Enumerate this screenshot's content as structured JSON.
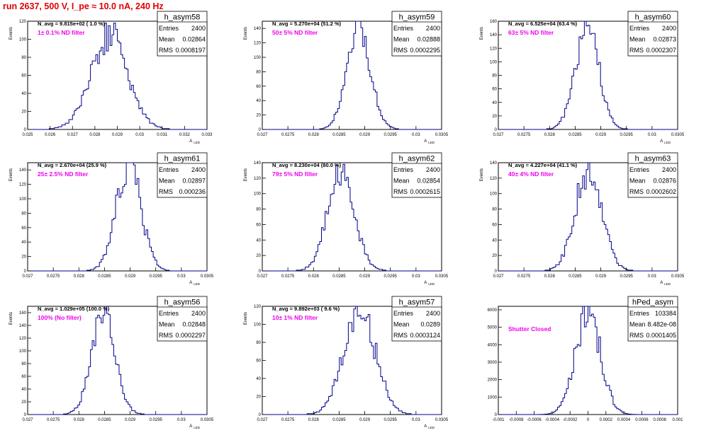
{
  "run_title": "run 2637,   500 V, I_pe ≈ 10.0 nA, 240 Hz",
  "colors": {
    "title": "#e00000",
    "histogram": "#00008b",
    "annotation": "#ee00ee",
    "axis": "#000000"
  },
  "chart_data": [
    {
      "type": "histogram",
      "name": "h_asym58",
      "entries": "2400",
      "mean": "0.02864",
      "rms": "0.0008197",
      "n_avg": "N_avg = 9.815e+02 ( 1.0 %)",
      "note": "1± 0.1% ND filter",
      "xlim": [
        0.025,
        0.033
      ],
      "ylim": [
        0,
        120
      ],
      "xticks": [
        0.025,
        0.026,
        0.027,
        0.028,
        0.029,
        0.03,
        0.031,
        0.032,
        0.033
      ],
      "xticklabels": [
        "0.025",
        "0.026",
        "0.027",
        "0.028",
        "0.029",
        "0.03",
        "0.031",
        "0.032",
        "0.033"
      ],
      "yticks": [
        0,
        20,
        40,
        60,
        80,
        100,
        120
      ],
      "xlabel": "A_LED",
      "ylabel": "Events",
      "peak": 0.02864,
      "width": 0.00082,
      "max": 105,
      "seed": 58
    },
    {
      "type": "histogram",
      "name": "h_asym59",
      "entries": "2400",
      "mean": "0.02888",
      "rms": "0.0002295",
      "n_avg": "N_avg = 5.270e+04 (51.2 %)",
      "note": "50± 5% ND filter",
      "xlim": [
        0.027,
        0.0305
      ],
      "ylim": [
        0,
        150
      ],
      "xticks": [
        0.027,
        0.0275,
        0.028,
        0.0285,
        0.029,
        0.0295,
        0.03,
        0.0305
      ],
      "xticklabels": [
        "0.027",
        "0.0275",
        "0.028",
        "0.0285",
        "0.029",
        "0.0295",
        "0.03",
        "0.0305"
      ],
      "yticks": [
        0,
        20,
        40,
        60,
        80,
        100,
        120,
        140
      ],
      "xlabel": "A_LED",
      "ylabel": "Events",
      "peak": 0.02888,
      "width": 0.00023,
      "max": 145,
      "seed": 59
    },
    {
      "type": "histogram",
      "name": "h_asym60",
      "entries": "2400",
      "mean": "0.02873",
      "rms": "0.0002307",
      "n_avg": "N_avg = 6.525e+04 (63.4 %)",
      "note": "63± 5% ND filter",
      "xlim": [
        0.027,
        0.0305
      ],
      "ylim": [
        0,
        160
      ],
      "xticks": [
        0.027,
        0.0275,
        0.028,
        0.0285,
        0.029,
        0.0295,
        0.03,
        0.0305
      ],
      "xticklabels": [
        "0.027",
        "0.0275",
        "0.028",
        "0.0285",
        "0.029",
        "0.0295",
        "0.03",
        "0.0305"
      ],
      "yticks": [
        0,
        20,
        40,
        60,
        80,
        100,
        120,
        140,
        160
      ],
      "xlabel": "A_LED",
      "ylabel": "Events",
      "peak": 0.02873,
      "width": 0.00023,
      "max": 150,
      "seed": 60
    },
    {
      "type": "histogram",
      "name": "h_asym61",
      "entries": "2400",
      "mean": "0.02897",
      "rms": "0.000236",
      "n_avg": "N_avg = 2.670e+04 (25.9 %)",
      "note": "25± 2.5% ND filter",
      "xlim": [
        0.027,
        0.0305
      ],
      "ylim": [
        0,
        150
      ],
      "xticks": [
        0.027,
        0.0275,
        0.028,
        0.0285,
        0.029,
        0.0295,
        0.03,
        0.0305
      ],
      "xticklabels": [
        "0.027",
        "0.0275",
        "0.028",
        "0.0285",
        "0.029",
        "0.0295",
        "0.03",
        "0.0305"
      ],
      "yticks": [
        0,
        20,
        40,
        60,
        80,
        100,
        120,
        140
      ],
      "xlabel": "A_LED",
      "ylabel": "Events",
      "peak": 0.02897,
      "width": 0.00024,
      "max": 150,
      "seed": 61
    },
    {
      "type": "histogram",
      "name": "h_asym62",
      "entries": "2400",
      "mean": "0.02854",
      "rms": "0.0002615",
      "n_avg": "N_avg = 8.230e+04 (80.0 %)",
      "note": "79± 5% ND filter",
      "xlim": [
        0.027,
        0.0305
      ],
      "ylim": [
        0,
        140
      ],
      "xticks": [
        0.027,
        0.0275,
        0.028,
        0.0285,
        0.029,
        0.0295,
        0.03,
        0.0305
      ],
      "xticklabels": [
        "0.027",
        "0.0275",
        "0.028",
        "0.0285",
        "0.029",
        "0.0295",
        "0.03",
        "0.0305"
      ],
      "yticks": [
        0,
        20,
        40,
        60,
        80,
        100,
        120,
        140
      ],
      "xlabel": "A_LED",
      "ylabel": "Events",
      "peak": 0.02854,
      "width": 0.00026,
      "max": 130,
      "seed": 62
    },
    {
      "type": "histogram",
      "name": "h_asym63",
      "entries": "2400",
      "mean": "0.02876",
      "rms": "0.0002602",
      "n_avg": "N_avg = 4.227e+04 (41.1 %)",
      "note": "40± 4% ND filter",
      "xlim": [
        0.027,
        0.0305
      ],
      "ylim": [
        0,
        140
      ],
      "xticks": [
        0.027,
        0.0275,
        0.028,
        0.0285,
        0.029,
        0.0295,
        0.03,
        0.0305
      ],
      "xticklabels": [
        "0.027",
        "0.0275",
        "0.028",
        "0.0285",
        "0.029",
        "0.0295",
        "0.03",
        "0.0305"
      ],
      "yticks": [
        0,
        20,
        40,
        60,
        80,
        100,
        120,
        140
      ],
      "xlabel": "A_LED",
      "ylabel": "Events",
      "peak": 0.02876,
      "width": 0.00026,
      "max": 130,
      "seed": 63
    },
    {
      "type": "histogram",
      "name": "h_asym56",
      "entries": "2400",
      "mean": "0.02848",
      "rms": "0.0002297",
      "n_avg": "N_avg = 1.029e+05 (100.0 %)",
      "note": "100% (No filter)",
      "xlim": [
        0.027,
        0.0305
      ],
      "ylim": [
        0,
        170
      ],
      "xticks": [
        0.027,
        0.0275,
        0.028,
        0.0285,
        0.029,
        0.0295,
        0.03,
        0.0305
      ],
      "xticklabels": [
        "0.027",
        "0.0275",
        "0.028",
        "0.0285",
        "0.029",
        "0.0295",
        "0.03",
        "0.0305"
      ],
      "yticks": [
        0,
        20,
        40,
        60,
        80,
        100,
        120,
        140,
        160
      ],
      "xlabel": "A_LED",
      "ylabel": "Events",
      "peak": 0.02848,
      "width": 0.00023,
      "max": 160,
      "seed": 56
    },
    {
      "type": "histogram",
      "name": "h_asym57",
      "entries": "2400",
      "mean": "0.0289",
      "rms": "0.0003124",
      "n_avg": "N_avg = 9.892e+03 ( 9.6 %)",
      "note": "10± 1% ND filter",
      "xlim": [
        0.027,
        0.0305
      ],
      "ylim": [
        0,
        120
      ],
      "xticks": [
        0.027,
        0.0275,
        0.028,
        0.0285,
        0.029,
        0.0295,
        0.03,
        0.0305
      ],
      "xticklabels": [
        "0.027",
        "0.0275",
        "0.028",
        "0.0285",
        "0.029",
        "0.0295",
        "0.03",
        "0.0305"
      ],
      "yticks": [
        0,
        20,
        40,
        60,
        80,
        100,
        120
      ],
      "xlabel": "A_LED",
      "ylabel": "Events",
      "peak": 0.0289,
      "width": 0.00031,
      "max": 115,
      "seed": 57
    },
    {
      "type": "histogram",
      "name": "hPed_asym",
      "entries": "103384",
      "mean": "8.482e-08",
      "rms": "0.0001405",
      "n_avg": "",
      "note": "Shutter Closed",
      "xlim": [
        -0.001,
        0.001
      ],
      "ylim": [
        0,
        6200
      ],
      "xticks": [
        -0.001,
        -0.0008,
        -0.0006,
        -0.0004,
        -0.0002,
        0,
        0.0002,
        0.0004,
        0.0006,
        0.0008,
        0.001
      ],
      "xticklabels": [
        "-0.001",
        "-0.0008",
        "-0.0006",
        "-0.0004",
        "-0.0002",
        "0",
        "0.0002",
        "0.0004",
        "0.0006",
        "0.0008",
        "0.001"
      ],
      "yticks": [
        0,
        1000,
        2000,
        3000,
        4000,
        5000,
        6000
      ],
      "xlabel": "",
      "ylabel": "",
      "peak": 0.0,
      "width": 0.00014,
      "max": 5850,
      "seed": 7
    }
  ]
}
